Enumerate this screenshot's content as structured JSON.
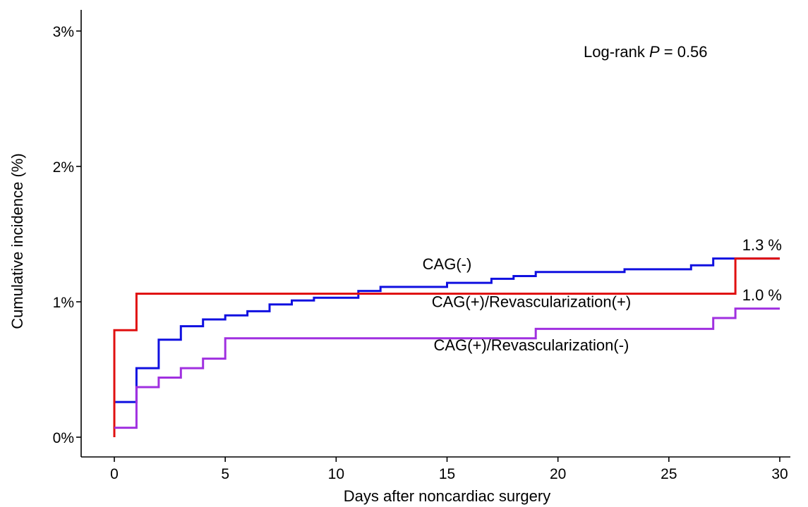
{
  "chart_data": {
    "type": "line",
    "step": true,
    "xlabel": "Days after noncardiac surgery",
    "ylabel": "Cumulative incidence (%)",
    "xlim": [
      0,
      30
    ],
    "ylim": [
      0,
      3
    ],
    "x_ticks": [
      {
        "value": 0,
        "label": "0"
      },
      {
        "value": 5,
        "label": "5"
      },
      {
        "value": 10,
        "label": "10"
      },
      {
        "value": 15,
        "label": "15"
      },
      {
        "value": 20,
        "label": "20"
      },
      {
        "value": 25,
        "label": "25"
      },
      {
        "value": 30,
        "label": "30"
      }
    ],
    "y_ticks": [
      {
        "value": 0,
        "label": "0%"
      },
      {
        "value": 1,
        "label": "1%"
      },
      {
        "value": 2,
        "label": "2%"
      },
      {
        "value": 3,
        "label": "3%"
      }
    ],
    "grid": false,
    "annotation": {
      "prefix": "Log-rank ",
      "italic": "P",
      "suffix": " = 0.56"
    },
    "series": [
      {
        "name": "CAG(-)",
        "color": "#1010e0",
        "points": [
          [
            0,
            0
          ],
          [
            0,
            0.26
          ],
          [
            1,
            0.26
          ],
          [
            1,
            0.51
          ],
          [
            2,
            0.51
          ],
          [
            2,
            0.72
          ],
          [
            3,
            0.72
          ],
          [
            3,
            0.82
          ],
          [
            4,
            0.82
          ],
          [
            4,
            0.87
          ],
          [
            5,
            0.87
          ],
          [
            5,
            0.9
          ],
          [
            6,
            0.9
          ],
          [
            6,
            0.93
          ],
          [
            7,
            0.93
          ],
          [
            7,
            0.98
          ],
          [
            8,
            0.98
          ],
          [
            8,
            1.01
          ],
          [
            9,
            1.01
          ],
          [
            9,
            1.03
          ],
          [
            11,
            1.03
          ],
          [
            11,
            1.08
          ],
          [
            12,
            1.08
          ],
          [
            12,
            1.11
          ],
          [
            15,
            1.11
          ],
          [
            15,
            1.14
          ],
          [
            17,
            1.14
          ],
          [
            17,
            1.17
          ],
          [
            18,
            1.17
          ],
          [
            18,
            1.19
          ],
          [
            19,
            1.19
          ],
          [
            19,
            1.22
          ],
          [
            23,
            1.22
          ],
          [
            23,
            1.24
          ],
          [
            26,
            1.24
          ],
          [
            26,
            1.27
          ],
          [
            27,
            1.27
          ],
          [
            27,
            1.32
          ],
          [
            30,
            1.32
          ]
        ]
      },
      {
        "name": "CAG(+)/Revascularization(+)",
        "color": "#e01010",
        "points": [
          [
            0,
            0
          ],
          [
            0,
            0.79
          ],
          [
            1,
            0.79
          ],
          [
            1,
            1.06
          ],
          [
            28,
            1.06
          ],
          [
            28,
            1.32
          ],
          [
            30,
            1.32
          ]
        ]
      },
      {
        "name": "CAG(+)/Revascularization(-)",
        "color": "#a030e0",
        "points": [
          [
            0,
            0.07
          ],
          [
            1,
            0.07
          ],
          [
            1,
            0.37
          ],
          [
            2,
            0.37
          ],
          [
            2,
            0.44
          ],
          [
            3,
            0.44
          ],
          [
            3,
            0.51
          ],
          [
            4,
            0.51
          ],
          [
            4,
            0.58
          ],
          [
            5,
            0.58
          ],
          [
            5,
            0.73
          ],
          [
            19,
            0.73
          ],
          [
            19,
            0.8
          ],
          [
            27,
            0.8
          ],
          [
            27,
            0.88
          ],
          [
            28,
            0.88
          ],
          [
            28,
            0.95
          ],
          [
            30,
            0.95
          ]
        ]
      }
    ],
    "series_labels": [
      {
        "text": "CAG(-)",
        "x": 15,
        "y": 1.24
      },
      {
        "text": "CAG(+)/Revascularization(+)",
        "x": 18.8,
        "y": 0.96
      },
      {
        "text": "CAG(+)/Revascularization(-)",
        "x": 18.8,
        "y": 0.64
      }
    ],
    "end_labels": [
      {
        "text": "1.3 %",
        "x": 29.2,
        "y": 1.38
      },
      {
        "text": "1.0 %",
        "x": 29.2,
        "y": 1.01
      }
    ]
  }
}
